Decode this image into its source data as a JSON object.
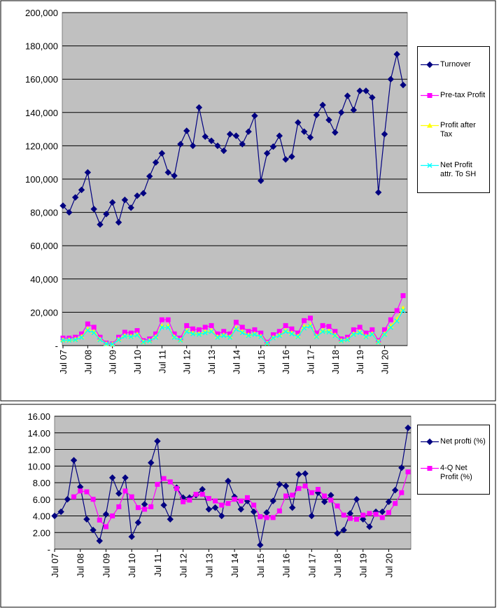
{
  "chart_data": [
    {
      "type": "line",
      "categories": [
        "Jul 07",
        null,
        null,
        null,
        "Jul 08",
        null,
        null,
        null,
        "Jul 09",
        null,
        null,
        null,
        "Jul 10",
        null,
        null,
        null,
        "Jul 11",
        null,
        null,
        null,
        "Jul 12",
        null,
        null,
        null,
        "Jul 13",
        null,
        null,
        null,
        "Jul 14",
        null,
        null,
        null,
        "Jul 15",
        null,
        null,
        null,
        "Jul 16",
        null,
        null,
        null,
        "Jul 17",
        null,
        null,
        null,
        "Jul 18",
        null,
        null,
        null,
        "Jul 19",
        null,
        null,
        null,
        "Jul 20",
        null,
        null,
        null
      ],
      "ylim": [
        0,
        200000
      ],
      "yticks": [
        {
          "value": 0,
          "label": "-"
        },
        {
          "value": 20000,
          "label": "20,000"
        },
        {
          "value": 40000,
          "label": "40,000"
        },
        {
          "value": 60000,
          "label": "60,000"
        },
        {
          "value": 80000,
          "label": "80,000"
        },
        {
          "value": 100000,
          "label": "100,000"
        },
        {
          "value": 120000,
          "label": "120,000"
        },
        {
          "value": 140000,
          "label": "140,000"
        },
        {
          "value": 160000,
          "label": "160,000"
        },
        {
          "value": 180000,
          "label": "180,000"
        },
        {
          "value": 200000,
          "label": "200,000"
        }
      ],
      "grid": true,
      "legend": "right",
      "series": [
        {
          "name": "Turnover",
          "color": "#000080",
          "marker": "diamond",
          "values": [
            84000,
            80000,
            89000,
            93500,
            104000,
            82000,
            72700,
            79000,
            86000,
            74000,
            87500,
            82800,
            90000,
            91500,
            101700,
            110000,
            115500,
            104000,
            102000,
            121000,
            129000,
            120000,
            143000,
            125500,
            123000,
            120000,
            117000,
            127000,
            126000,
            121000,
            128500,
            138000,
            99000,
            115500,
            119500,
            126000,
            111800,
            113500,
            134000,
            128500,
            125000,
            138500,
            144500,
            135500,
            128000,
            140000,
            150000,
            141500,
            153000,
            153000,
            149000,
            92000,
            127000,
            160000,
            175000,
            156500
          ]
        },
        {
          "name": "Pre-tax Profit",
          "color": "#ff00ff",
          "marker": "square",
          "values": [
            4500,
            4500,
            5000,
            7000,
            13000,
            11000,
            5000,
            1500,
            1000,
            5000,
            8000,
            7500,
            9000,
            3000,
            4000,
            7000,
            15500,
            15500,
            7000,
            4500,
            12000,
            10000,
            9500,
            11000,
            12000,
            7000,
            8500,
            7000,
            14000,
            11000,
            8500,
            9500,
            7500,
            2000,
            6500,
            8500,
            12000,
            10000,
            7500,
            15000,
            16500,
            7500,
            12000,
            11500,
            8500,
            4000,
            5000,
            9500,
            11000,
            7500,
            9500,
            3000,
            9500,
            15500,
            21000,
            30000
          ]
        },
        {
          "name": "Profit after Tax",
          "color": "#ffff00",
          "marker": "triangle",
          "values": [
            3400,
            3400,
            3800,
            5300,
            9800,
            8300,
            3800,
            1100,
            800,
            3800,
            6000,
            5600,
            6800,
            2300,
            3000,
            5300,
            11600,
            11600,
            5300,
            3400,
            9000,
            7500,
            7100,
            8300,
            9000,
            5300,
            6400,
            5300,
            10500,
            8300,
            6400,
            7100,
            5600,
            1500,
            4900,
            6400,
            9000,
            7500,
            5600,
            11300,
            12400,
            5600,
            9000,
            8600,
            6400,
            3000,
            3800,
            7100,
            8300,
            5600,
            7100,
            2300,
            7100,
            11600,
            15800,
            22500
          ]
        },
        {
          "name": "Net Profit attr. To SH",
          "color": "#00ffff",
          "marker": "x",
          "values": [
            3200,
            3200,
            3500,
            4900,
            9100,
            7700,
            3500,
            1000,
            700,
            3500,
            5600,
            5300,
            6300,
            2100,
            2800,
            4900,
            10900,
            10900,
            4900,
            3200,
            8400,
            7000,
            6700,
            7700,
            8400,
            4900,
            6000,
            4900,
            9800,
            7700,
            6000,
            6700,
            5300,
            1400,
            4600,
            6000,
            8400,
            7000,
            5300,
            10500,
            11600,
            5300,
            8400,
            8100,
            6000,
            2800,
            3500,
            6700,
            7700,
            5300,
            6700,
            2100,
            6700,
            10900,
            14700,
            21000
          ]
        }
      ]
    },
    {
      "type": "line",
      "categories": [
        "Jul 07",
        null,
        null,
        null,
        "Jul 08",
        null,
        null,
        null,
        "Jul 09",
        null,
        null,
        null,
        "Jul 10",
        null,
        null,
        null,
        "Jul 11",
        null,
        null,
        null,
        "Jul 12",
        null,
        null,
        null,
        "Jul 13",
        null,
        null,
        null,
        "Jul 14",
        null,
        null,
        null,
        "Jul 15",
        null,
        null,
        null,
        "Jul 16",
        null,
        null,
        null,
        "Jul 17",
        null,
        null,
        null,
        "Jul 18",
        null,
        null,
        null,
        "Jul 19",
        null,
        null,
        null,
        "Jul 20",
        null,
        null,
        null
      ],
      "ylim": [
        0,
        16
      ],
      "yticks": [
        {
          "value": 0,
          "label": "-"
        },
        {
          "value": 2,
          "label": "2.00"
        },
        {
          "value": 4,
          "label": "4.00"
        },
        {
          "value": 6,
          "label": "6.00"
        },
        {
          "value": 8,
          "label": "8.00"
        },
        {
          "value": 10,
          "label": "10.00"
        },
        {
          "value": 12,
          "label": "12.00"
        },
        {
          "value": 14,
          "label": "14.00"
        },
        {
          "value": 16,
          "label": "16.00"
        }
      ],
      "grid": true,
      "legend": "right",
      "series": [
        {
          "name": "Net profti (%)",
          "color": "#000080",
          "marker": "diamond",
          "values": [
            4.0,
            4.5,
            6.0,
            10.7,
            7.5,
            3.6,
            2.3,
            1.0,
            4.2,
            8.6,
            6.7,
            8.6,
            1.5,
            3.2,
            5.4,
            10.4,
            13.0,
            5.3,
            3.6,
            7.4,
            6.2,
            6.2,
            6.5,
            7.2,
            4.8,
            5.0,
            4.0,
            8.2,
            6.3,
            4.8,
            5.8,
            4.5,
            0.5,
            4.4,
            5.8,
            7.8,
            7.6,
            5.0,
            9.0,
            9.1,
            4.0,
            6.8,
            5.7,
            6.5,
            1.9,
            2.3,
            4.3,
            6.0,
            3.6,
            2.7,
            4.5,
            4.5,
            5.7,
            7.1,
            9.8,
            14.6
          ]
        },
        {
          "name": "4-Q Net Profit (%)",
          "color": "#ff00ff",
          "marker": "square",
          "values": [
            null,
            null,
            null,
            6.3,
            7.0,
            6.9,
            6.0,
            3.5,
            2.7,
            4.0,
            5.1,
            7.0,
            6.3,
            5.0,
            4.8,
            5.1,
            7.8,
            8.5,
            8.1,
            7.3,
            5.7,
            5.9,
            6.6,
            6.6,
            6.1,
            5.8,
            5.3,
            5.5,
            6.0,
            5.8,
            6.2,
            5.3,
            3.9,
            3.8,
            3.8,
            4.6,
            6.4,
            6.5,
            7.3,
            7.6,
            6.8,
            7.2,
            6.4,
            5.9,
            5.2,
            4.1,
            3.7,
            3.6,
            4.1,
            4.3,
            4.2,
            3.8,
            4.4,
            5.5,
            6.8,
            9.3
          ]
        }
      ]
    }
  ]
}
